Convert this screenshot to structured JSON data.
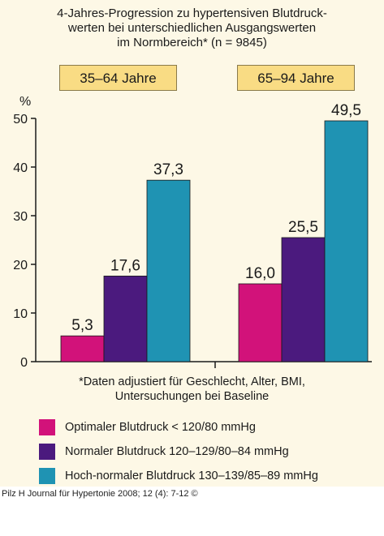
{
  "header": {
    "title_lines": [
      "4-Jahres-Progression zu hypertensiven Blutdruck-",
      "werten bei unterschiedlichen Ausgangswerten",
      "im Normbereich* (n = 9845)"
    ]
  },
  "chart_data": {
    "type": "bar",
    "categories": [
      "35–64 Jahre",
      "65–94 Jahre"
    ],
    "series": [
      {
        "name": "Optimaler Blutdruck < 120/80 mmHg",
        "color": "#d2127a",
        "values": [
          5.3,
          16.0
        ],
        "labels": [
          "5,3",
          "16,0"
        ]
      },
      {
        "name": "Normaler Blutdruck 120–129/80–84 mmHg",
        "color": "#4b1a7e",
        "values": [
          17.6,
          25.5
        ],
        "labels": [
          "17,6",
          "25,5"
        ]
      },
      {
        "name": "Hoch-normaler Blutdruck 130–139/85–89 mmHg",
        "color": "#1f93b3",
        "values": [
          37.3,
          49.5
        ],
        "labels": [
          "37,3",
          "49,5"
        ]
      }
    ],
    "ylabel": "%",
    "ylim": [
      0,
      50
    ],
    "yticks": [
      0,
      10,
      20,
      30,
      40,
      50
    ],
    "grid": false,
    "legend_position": "bottom"
  },
  "footnote": {
    "lines": [
      "*Daten adjustiert für Geschlecht, Alter, BMI,",
      "Untersuchungen bei Baseline"
    ]
  },
  "credit": "Pilz H Journal für Hypertonie 2008; 12 (4): 7-12 ©"
}
